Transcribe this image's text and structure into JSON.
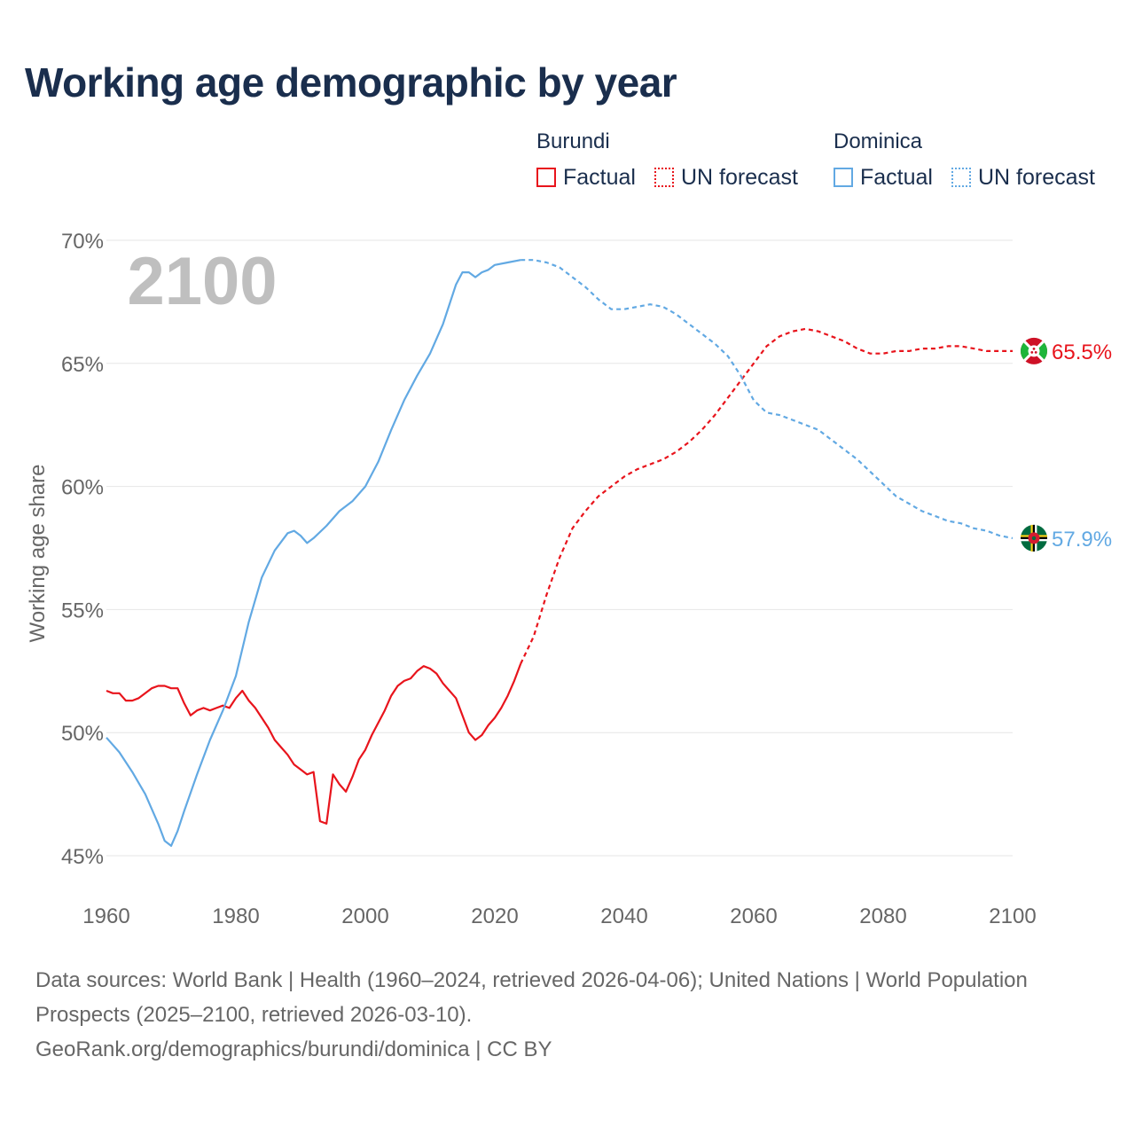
{
  "title": "Working age demographic by year",
  "year_label": "2100",
  "legend": {
    "groups": [
      {
        "name": "Burundi",
        "color": "#e8141c",
        "factual_label": "Factual",
        "forecast_label": "UN forecast"
      },
      {
        "name": "Dominica",
        "color": "#62a9e3",
        "factual_label": "Factual",
        "forecast_label": "UN forecast"
      }
    ]
  },
  "footer": {
    "source": "Data sources: World Bank | Health (1960–2024, retrieved 2026-04-06); United Nations | World Population Prospects (2025–2100, retrieved 2026-03-10).",
    "credit": "GeoRank.org/demographics/burundi/dominica | CC BY"
  },
  "chart_data": {
    "type": "line",
    "title": "Working age demographic by year",
    "xlabel": "",
    "ylabel": "Working age share",
    "xlim": [
      1960,
      2100
    ],
    "ylim": [
      45,
      70
    ],
    "x_ticks": [
      1960,
      1980,
      2000,
      2020,
      2040,
      2060,
      2080,
      2100
    ],
    "y_ticks": [
      45,
      50,
      55,
      60,
      65,
      70
    ],
    "y_tick_suffix": "%",
    "grid": true,
    "series": [
      {
        "name": "Burundi",
        "color": "#e8141c",
        "end_label": "65.5%",
        "flag": "burundi-flag",
        "factual": {
          "x": [
            1960,
            1961,
            1962,
            1963,
            1964,
            1965,
            1966,
            1967,
            1968,
            1969,
            1970,
            1971,
            1972,
            1973,
            1974,
            1975,
            1976,
            1977,
            1978,
            1979,
            1980,
            1981,
            1982,
            1983,
            1984,
            1985,
            1986,
            1987,
            1988,
            1989,
            1990,
            1991,
            1992,
            1993,
            1994,
            1995,
            1996,
            1997,
            1998,
            1999,
            2000,
            2001,
            2002,
            2003,
            2004,
            2005,
            2006,
            2007,
            2008,
            2009,
            2010,
            2011,
            2012,
            2013,
            2014,
            2015,
            2016,
            2017,
            2018,
            2019,
            2020,
            2021,
            2022,
            2023,
            2024
          ],
          "y": [
            51.7,
            51.6,
            51.6,
            51.3,
            51.3,
            51.4,
            51.6,
            51.8,
            51.9,
            51.9,
            51.8,
            51.8,
            51.2,
            50.7,
            50.9,
            51.0,
            50.9,
            51.0,
            51.1,
            51.0,
            51.4,
            51.7,
            51.3,
            51.0,
            50.6,
            50.2,
            49.7,
            49.4,
            49.1,
            48.7,
            48.5,
            48.3,
            48.4,
            46.4,
            46.3,
            48.3,
            47.9,
            47.6,
            48.2,
            48.9,
            49.3,
            49.9,
            50.4,
            50.9,
            51.5,
            51.9,
            52.1,
            52.2,
            52.5,
            52.7,
            52.6,
            52.4,
            52.0,
            51.7,
            51.4,
            50.7,
            50.0,
            49.7,
            49.9,
            50.3,
            50.6,
            51.0,
            51.5,
            52.1,
            52.8
          ]
        },
        "forecast": {
          "x": [
            2024,
            2026,
            2028,
            2030,
            2032,
            2034,
            2036,
            2038,
            2040,
            2042,
            2044,
            2046,
            2048,
            2050,
            2052,
            2054,
            2056,
            2058,
            2060,
            2062,
            2064,
            2066,
            2068,
            2070,
            2072,
            2074,
            2076,
            2078,
            2080,
            2082,
            2084,
            2086,
            2088,
            2090,
            2092,
            2094,
            2096,
            2098,
            2100
          ],
          "y": [
            52.8,
            53.9,
            55.6,
            57.1,
            58.3,
            59.0,
            59.6,
            60.0,
            60.4,
            60.7,
            60.9,
            61.1,
            61.4,
            61.8,
            62.3,
            62.9,
            63.6,
            64.3,
            65.0,
            65.7,
            66.1,
            66.3,
            66.4,
            66.3,
            66.1,
            65.9,
            65.6,
            65.4,
            65.4,
            65.5,
            65.5,
            65.6,
            65.6,
            65.7,
            65.7,
            65.6,
            65.5,
            65.5,
            65.5
          ]
        }
      },
      {
        "name": "Dominica",
        "color": "#62a9e3",
        "end_label": "57.9%",
        "flag": "dominica-flag",
        "factual": {
          "x": [
            1960,
            1962,
            1964,
            1966,
            1968,
            1969,
            1970,
            1971,
            1972,
            1974,
            1976,
            1978,
            1980,
            1982,
            1984,
            1986,
            1988,
            1989,
            1990,
            1991,
            1992,
            1994,
            1996,
            1998,
            2000,
            2002,
            2004,
            2006,
            2008,
            2010,
            2012,
            2014,
            2015,
            2016,
            2017,
            2018,
            2019,
            2020,
            2022,
            2024
          ],
          "y": [
            49.8,
            49.2,
            48.4,
            47.5,
            46.3,
            45.6,
            45.4,
            46.0,
            46.8,
            48.3,
            49.7,
            50.9,
            52.3,
            54.5,
            56.3,
            57.4,
            58.1,
            58.2,
            58.0,
            57.7,
            57.9,
            58.4,
            59.0,
            59.4,
            60.0,
            61.0,
            62.3,
            63.5,
            64.5,
            65.4,
            66.6,
            68.2,
            68.7,
            68.7,
            68.5,
            68.7,
            68.8,
            69.0,
            69.1,
            69.2
          ]
        },
        "forecast": {
          "x": [
            2024,
            2026,
            2028,
            2030,
            2032,
            2034,
            2036,
            2038,
            2040,
            2042,
            2044,
            2046,
            2048,
            2050,
            2052,
            2054,
            2056,
            2058,
            2060,
            2062,
            2064,
            2066,
            2068,
            2070,
            2072,
            2074,
            2076,
            2078,
            2080,
            2082,
            2084,
            2086,
            2088,
            2090,
            2092,
            2094,
            2096,
            2098,
            2100
          ],
          "y": [
            69.2,
            69.2,
            69.1,
            68.9,
            68.5,
            68.1,
            67.6,
            67.2,
            67.2,
            67.3,
            67.4,
            67.3,
            67.0,
            66.6,
            66.2,
            65.8,
            65.3,
            64.5,
            63.5,
            63.0,
            62.9,
            62.7,
            62.5,
            62.3,
            61.9,
            61.5,
            61.1,
            60.6,
            60.1,
            59.6,
            59.3,
            59.0,
            58.8,
            58.6,
            58.5,
            58.3,
            58.2,
            58.0,
            57.9
          ]
        }
      }
    ]
  }
}
